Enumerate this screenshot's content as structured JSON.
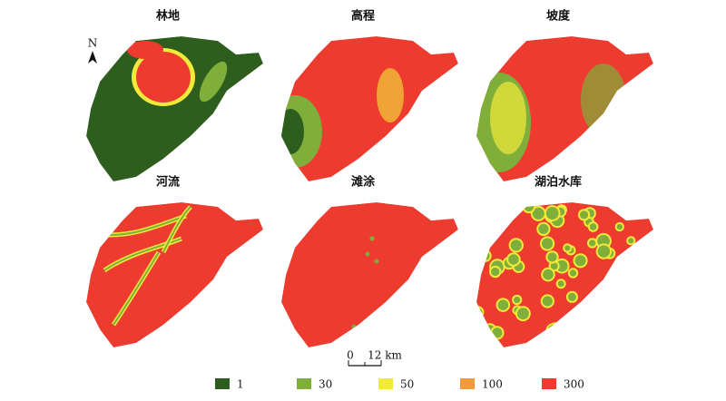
{
  "north": "N",
  "panels": [
    {
      "title": "林地"
    },
    {
      "title": "高程"
    },
    {
      "title": "坡度"
    },
    {
      "title": "河流"
    },
    {
      "title": "滩涂"
    },
    {
      "title": "湖泊水库"
    }
  ],
  "scale_bar": {
    "start": "0",
    "end": "12 km"
  },
  "legend": [
    {
      "label": "1",
      "color": "#2e5e1e"
    },
    {
      "label": "30",
      "color": "#7fae3a"
    },
    {
      "label": "50",
      "color": "#f2ea3a"
    },
    {
      "label": "100",
      "color": "#f29a3c"
    },
    {
      "label": "300",
      "color": "#ee3b2f"
    }
  ]
}
